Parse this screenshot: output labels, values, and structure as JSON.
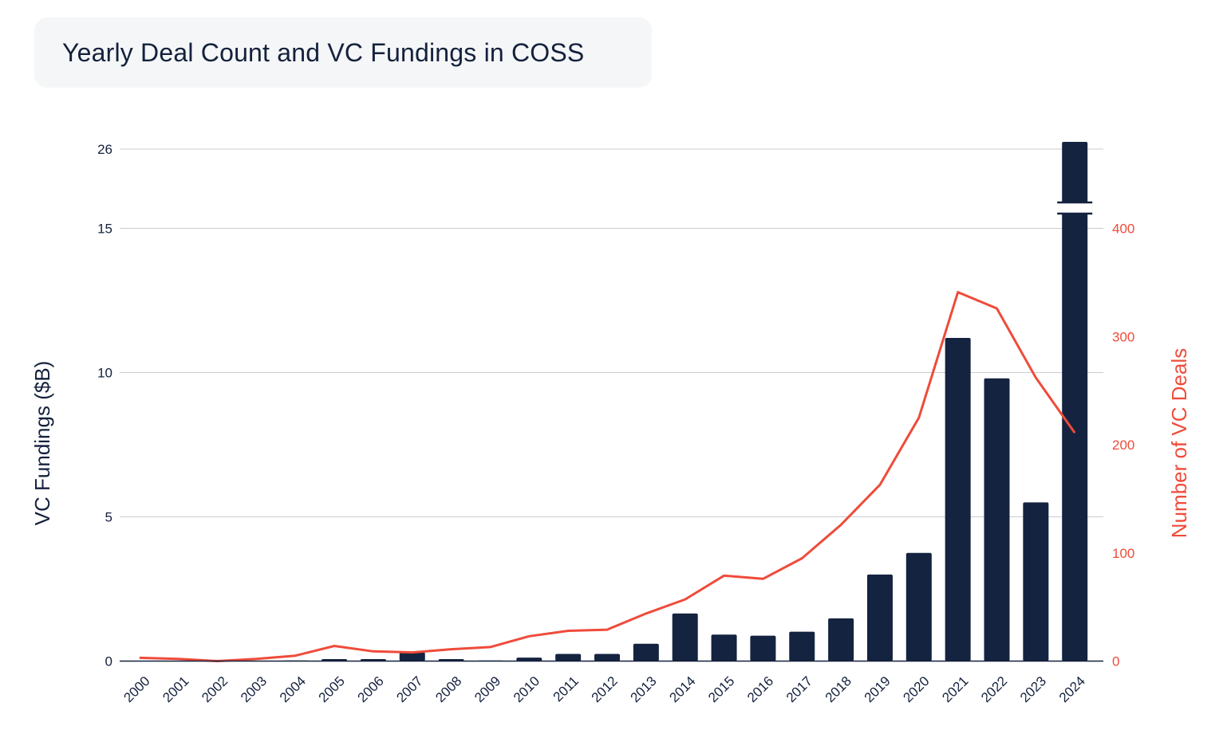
{
  "title": "Yearly Deal Count and VC Fundings in COSS",
  "colors": {
    "bars": "#14233f",
    "line": "#ef4b3a",
    "grid": "#c9ccd1",
    "axis": "#14213d"
  },
  "chart_data": {
    "type": "bar",
    "title": "Yearly Deal Count and VC Fundings in COSS",
    "categories": [
      "2000",
      "2001",
      "2002",
      "2003",
      "2004",
      "2005",
      "2006",
      "2007",
      "2008",
      "2009",
      "2010",
      "2011",
      "2012",
      "2013",
      "2014",
      "2015",
      "2016",
      "2017",
      "2018",
      "2019",
      "2020",
      "2021",
      "2022",
      "2023",
      "2024"
    ],
    "series": [
      {
        "name": "VC Fundings ($B)",
        "type": "bar",
        "axis": "left",
        "values": [
          0,
          0,
          0,
          0,
          0.02,
          0.07,
          0.07,
          0.3,
          0.07,
          0.02,
          0.12,
          0.25,
          0.25,
          0.6,
          1.65,
          0.92,
          0.88,
          1.02,
          1.48,
          3.0,
          3.75,
          11.2,
          9.8,
          5.5,
          26
        ]
      },
      {
        "name": "Number of VC Deals",
        "type": "line",
        "axis": "right",
        "values": [
          3,
          2,
          0,
          2,
          5,
          14,
          9,
          8,
          11,
          13,
          23,
          28,
          29,
          44,
          57,
          79,
          76,
          95,
          126,
          163,
          225,
          341,
          326,
          262,
          211
        ]
      }
    ],
    "ylabel": "VC Fundings ($B)",
    "ylabel_right": "Number of VC Deals",
    "y_ticks": [
      0,
      5,
      10,
      15,
      26
    ],
    "y_axis_break": [
      15,
      26
    ],
    "y_right_ticks": [
      0,
      100,
      200,
      300,
      400
    ],
    "ylim": [
      0,
      26
    ],
    "ylim_right": [
      0,
      400
    ],
    "grid": true
  }
}
